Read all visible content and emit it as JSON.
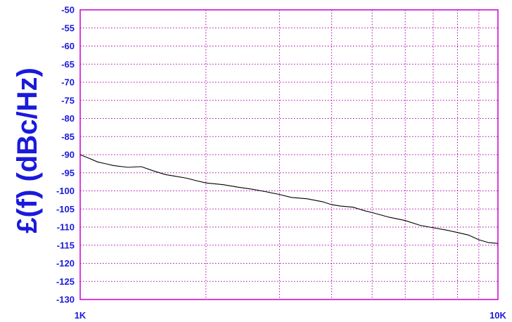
{
  "colors": {
    "axis_text": "#1a1adb",
    "grid": "#b000b0",
    "frame": "#cc00cc",
    "series": "#000000"
  },
  "chart_data": {
    "type": "line",
    "title": "",
    "xlabel": "",
    "ylabel": "£(f) (dBc/Hz)",
    "xscale": "log",
    "xlim": [
      1000,
      10000
    ],
    "ylim": [
      -130,
      -50
    ],
    "grid": true,
    "x_ticks": [
      1000,
      10000
    ],
    "x_tick_labels": [
      "1K",
      "10K"
    ],
    "y_ticks": [
      -50,
      -55,
      -60,
      -65,
      -70,
      -75,
      -80,
      -85,
      -90,
      -95,
      -100,
      -105,
      -110,
      -115,
      -120,
      -125,
      -130
    ],
    "y_tick_labels": [
      "-50",
      "-55",
      "-60",
      "-65",
      "-70",
      "-75",
      "-80",
      "-85",
      "-90",
      "-95",
      "-100",
      "-105",
      "-110",
      "-115",
      "-120",
      "-125",
      "-130"
    ],
    "series": [
      {
        "x": [
          1000,
          1050,
          1100,
          1150,
          1200,
          1300,
          1400,
          1500,
          1600,
          1700,
          1800,
          1900,
          2000,
          2200,
          2400,
          2600,
          2800,
          3000,
          3200,
          3500,
          3800,
          4000,
          4200,
          4500,
          4800,
          5000,
          5500,
          6000,
          6500,
          7000,
          7500,
          8000,
          8500,
          9000,
          9500,
          10000
        ],
        "y": [
          -90,
          -91,
          -92,
          -92.5,
          -93,
          -93.5,
          -93.3,
          -94.5,
          -95.5,
          -96,
          -96.5,
          -97.2,
          -97.8,
          -98.3,
          -99,
          -99.6,
          -100.3,
          -101,
          -101.8,
          -102.2,
          -103,
          -103.8,
          -104.2,
          -104.5,
          -105.5,
          -106,
          -107.3,
          -108.2,
          -109.5,
          -110.2,
          -110.8,
          -111.5,
          -112.2,
          -113.5,
          -114.3,
          -114.5
        ]
      }
    ]
  }
}
